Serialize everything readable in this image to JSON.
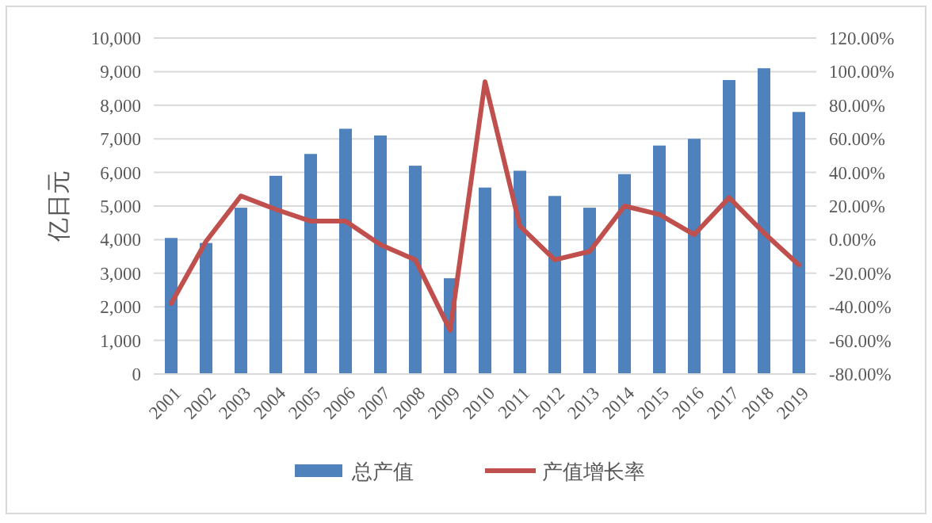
{
  "chart_data": {
    "type": "bar",
    "ylabel": "亿日元",
    "categories": [
      "2001",
      "2002",
      "2003",
      "2004",
      "2005",
      "2006",
      "2007",
      "2008",
      "2009",
      "2010",
      "2011",
      "2012",
      "2013",
      "2014",
      "2015",
      "2016",
      "2017",
      "2018",
      "2019"
    ],
    "series": [
      {
        "name": "总产值",
        "color": "#4f81bd",
        "values": [
          4050,
          3900,
          4950,
          5900,
          6550,
          7300,
          7100,
          6200,
          2850,
          5550,
          6050,
          5300,
          4950,
          5950,
          6800,
          7000,
          8750,
          9100,
          7800
        ]
      },
      {
        "name": "产值增长率",
        "type": "line",
        "axis": "y2",
        "color": "#c0504d",
        "values": [
          -38,
          -1,
          26,
          18,
          11,
          11,
          -3,
          -12,
          -54,
          94,
          8,
          -12,
          -7,
          20,
          15,
          3,
          25,
          4,
          -15
        ]
      }
    ],
    "ylim": [
      0,
      10000
    ],
    "yticks": [
      0,
      {
        "value": 1000,
        "label": "1,000"
      },
      {
        "value": 2000,
        "label": "2,000"
      },
      {
        "value": 3000,
        "label": "3,000"
      },
      {
        "value": 4000,
        "label": "4,000"
      },
      {
        "value": 5000,
        "label": "5,000"
      },
      {
        "value": 6000,
        "label": "6,000"
      },
      {
        "value": 7000,
        "label": "7,000"
      },
      {
        "value": 8000,
        "label": "8,000"
      },
      {
        "value": 9000,
        "label": "9,000"
      },
      {
        "value": 10000,
        "label": "10,000"
      }
    ],
    "y2lim": [
      -80,
      120
    ],
    "y2ticks": [
      {
        "value": -80,
        "label": "-80.00%"
      },
      {
        "value": -60,
        "label": "-60.00%"
      },
      {
        "value": -40,
        "label": "-40.00%"
      },
      {
        "value": -20,
        "label": "-20.00%"
      },
      {
        "value": 0,
        "label": "0.00%"
      },
      {
        "value": 20,
        "label": "20.00%"
      },
      {
        "value": 40,
        "label": "40.00%"
      },
      {
        "value": 60,
        "label": "60.00%"
      },
      {
        "value": 80,
        "label": "80.00%"
      },
      {
        "value": 100,
        "label": "100.00%"
      },
      {
        "value": 120,
        "label": "120.00%"
      }
    ],
    "grid": "y",
    "legend": "bottom"
  }
}
